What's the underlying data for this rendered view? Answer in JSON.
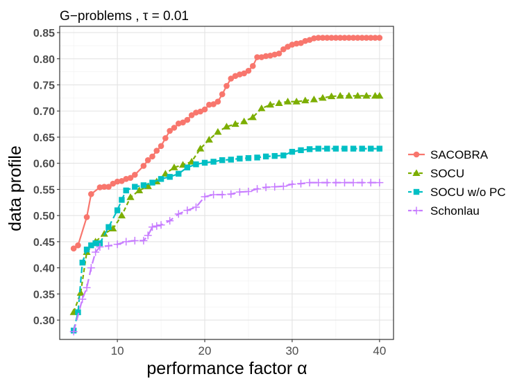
{
  "chart_data": {
    "type": "line",
    "title": "G−problems , τ = 0.01",
    "xlabel": "performance factor α",
    "ylabel": "data profile",
    "xlim": [
      3.4,
      41.6
    ],
    "ylim": [
      0.263,
      0.862
    ],
    "x_ticks": [
      10,
      20,
      30,
      40
    ],
    "y_ticks": [
      0.3,
      0.35,
      0.4,
      0.45,
      0.5,
      0.55,
      0.6,
      0.65,
      0.7,
      0.75,
      0.8,
      0.85
    ],
    "y_tick_labels": [
      "0.30",
      "0.35",
      "0.40",
      "0.45",
      "0.50",
      "0.55",
      "0.60",
      "0.65",
      "0.70",
      "0.75",
      "0.80",
      "0.85"
    ],
    "x_tick_labels": [
      "10",
      "20",
      "30",
      "40"
    ],
    "grid": true,
    "legend_position": "right",
    "series": [
      {
        "name": "SACOBRA",
        "color": "#F8766D",
        "marker": "circle",
        "dash": "solid",
        "x": [
          5.0,
          5.5,
          6.5,
          7.0,
          8.0,
          8.5,
          9.0,
          9.5,
          10.0,
          10.5,
          11.0,
          11.5,
          12.0,
          13.0,
          13.5,
          14.0,
          14.5,
          15.0,
          15.5,
          16.0,
          16.5,
          17.0,
          17.5,
          18.0,
          18.5,
          19.0,
          19.5,
          20.0,
          20.5,
          21.0,
          21.5,
          22.0,
          22.5,
          23.0,
          23.5,
          24.0,
          24.5,
          25.0,
          25.5,
          26.0,
          26.5,
          27.0,
          27.5,
          28.0,
          28.5,
          29.0,
          29.5,
          30.0,
          30.5,
          31.0,
          31.5,
          32.0,
          32.5,
          33.0,
          33.5,
          34.0,
          34.5,
          35.0,
          35.5,
          36.0,
          36.5,
          37.0,
          37.5,
          38.0,
          38.5,
          39.0,
          39.5,
          40.0
        ],
        "y": [
          0.437,
          0.443,
          0.497,
          0.541,
          0.554,
          0.555,
          0.555,
          0.561,
          0.565,
          0.566,
          0.57,
          0.572,
          0.578,
          0.595,
          0.606,
          0.613,
          0.624,
          0.633,
          0.648,
          0.662,
          0.668,
          0.676,
          0.678,
          0.683,
          0.692,
          0.697,
          0.699,
          0.703,
          0.712,
          0.713,
          0.718,
          0.732,
          0.748,
          0.762,
          0.767,
          0.77,
          0.772,
          0.777,
          0.786,
          0.803,
          0.803,
          0.805,
          0.806,
          0.808,
          0.81,
          0.818,
          0.823,
          0.827,
          0.829,
          0.83,
          0.834,
          0.836,
          0.839,
          0.84,
          0.84,
          0.84,
          0.84,
          0.84,
          0.84,
          0.84,
          0.84,
          0.84,
          0.84,
          0.84,
          0.84,
          0.84,
          0.84,
          0.84
        ]
      },
      {
        "name": "SOCU",
        "color": "#7CAE00",
        "marker": "triangle",
        "dash": "6,4",
        "x": [
          5.0,
          5.8,
          6.5,
          7.5,
          8.5,
          9.5,
          10.5,
          11.5,
          12.5,
          13.5,
          14.5,
          15.5,
          16.5,
          17.5,
          18.5,
          19.5,
          20.5,
          21.5,
          22.5,
          23.5,
          24.5,
          25.5,
          26.5,
          27.5,
          28.5,
          29.5,
          30.5,
          31.5,
          32.5,
          33.5,
          34.5,
          35.5,
          36.5,
          37.5,
          38.5,
          39.5,
          40.0
        ],
        "y": [
          0.315,
          0.352,
          0.43,
          0.45,
          0.465,
          0.475,
          0.5,
          0.535,
          0.548,
          0.556,
          0.565,
          0.58,
          0.592,
          0.597,
          0.603,
          0.628,
          0.645,
          0.66,
          0.67,
          0.675,
          0.68,
          0.688,
          0.705,
          0.712,
          0.715,
          0.718,
          0.718,
          0.72,
          0.722,
          0.725,
          0.728,
          0.729,
          0.729,
          0.729,
          0.729,
          0.729,
          0.729
        ]
      },
      {
        "name": "SOCU w/o PC",
        "color": "#00BFC4",
        "marker": "square",
        "dash": "9,5",
        "x": [
          5.0,
          5.5,
          6.0,
          6.5,
          7.0,
          7.5,
          8.0,
          9.0,
          10.0,
          10.5,
          11.0,
          12.0,
          13.0,
          14.0,
          15.0,
          16.0,
          17.0,
          18.0,
          19.0,
          20.0,
          21.0,
          22.0,
          23.0,
          24.0,
          25.0,
          26.0,
          27.0,
          28.0,
          29.0,
          30.0,
          31.0,
          32.0,
          33.0,
          34.0,
          35.0,
          36.0,
          37.0,
          38.0,
          39.0,
          40.0
        ],
        "y": [
          0.28,
          0.315,
          0.41,
          0.435,
          0.443,
          0.447,
          0.447,
          0.478,
          0.51,
          0.53,
          0.548,
          0.555,
          0.558,
          0.563,
          0.57,
          0.574,
          0.58,
          0.592,
          0.598,
          0.601,
          0.603,
          0.606,
          0.607,
          0.609,
          0.61,
          0.611,
          0.613,
          0.614,
          0.615,
          0.622,
          0.625,
          0.627,
          0.628,
          0.628,
          0.628,
          0.628,
          0.628,
          0.628,
          0.628,
          0.628
        ]
      },
      {
        "name": "Schonlau",
        "color": "#C77CFF",
        "marker": "plus",
        "dash": "11,6",
        "x": [
          5.0,
          6.0,
          6.5,
          7.0,
          7.5,
          8.0,
          9.0,
          10.0,
          11.0,
          12.0,
          13.0,
          13.5,
          14.0,
          14.5,
          15.0,
          16.0,
          17.0,
          18.0,
          19.0,
          20.0,
          21.0,
          22.0,
          23.0,
          24.0,
          25.0,
          26.0,
          27.0,
          28.0,
          29.0,
          30.0,
          31.0,
          32.0,
          33.0,
          34.0,
          35.0,
          36.0,
          37.0,
          38.0,
          39.0,
          40.0
        ],
        "y": [
          0.278,
          0.34,
          0.362,
          0.4,
          0.43,
          0.44,
          0.442,
          0.445,
          0.45,
          0.452,
          0.452,
          0.462,
          0.478,
          0.48,
          0.482,
          0.49,
          0.503,
          0.51,
          0.516,
          0.536,
          0.54,
          0.54,
          0.541,
          0.545,
          0.546,
          0.551,
          0.554,
          0.555,
          0.556,
          0.56,
          0.561,
          0.563,
          0.563,
          0.563,
          0.563,
          0.563,
          0.563,
          0.563,
          0.563,
          0.563
        ]
      }
    ]
  }
}
